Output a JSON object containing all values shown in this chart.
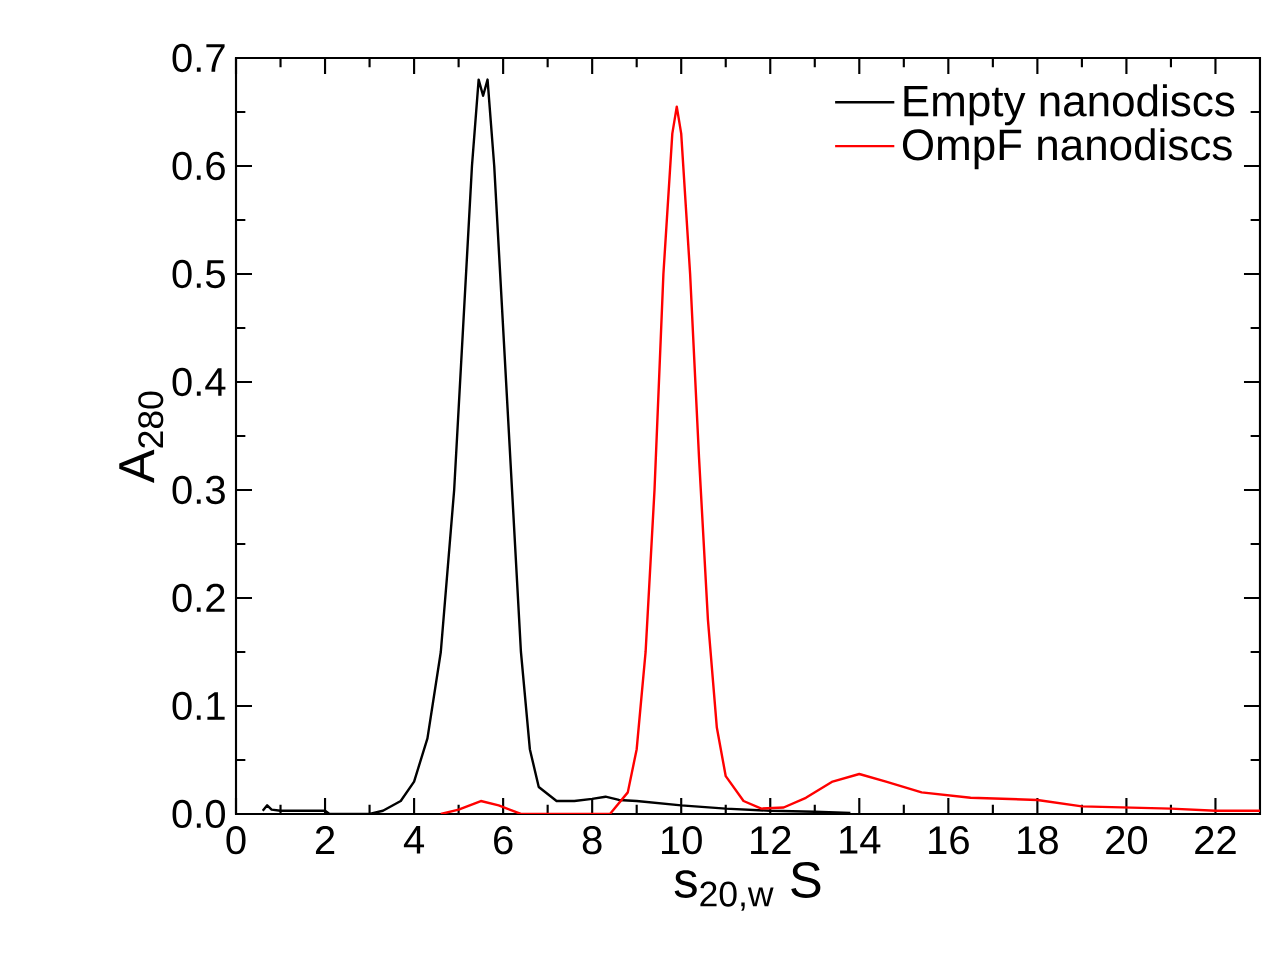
{
  "chart_data": {
    "type": "line",
    "xlabel": "s$_{20,w}$ S",
    "ylabel": "A$_{280}$",
    "xlim": [
      0,
      23
    ],
    "ylim": [
      0,
      0.7
    ],
    "xticks": [
      0,
      {
        "value": 1,
        "label": null
      },
      2,
      {
        "value": 3,
        "label": null
      },
      4,
      {
        "value": 5,
        "label": null
      },
      6,
      {
        "value": 7,
        "label": null
      },
      8,
      {
        "value": 9,
        "label": null
      },
      10,
      {
        "value": 11,
        "label": null
      },
      12,
      {
        "value": 13,
        "label": null
      },
      14,
      {
        "value": 15,
        "label": null
      },
      16,
      {
        "value": 17,
        "label": null
      },
      18,
      {
        "value": 19,
        "label": null
      },
      20,
      {
        "value": 21,
        "label": null
      },
      22
    ],
    "yticks": [
      {
        "value": 0,
        "label": "0.0"
      },
      {
        "value": 0.05,
        "label": null
      },
      {
        "value": 0.1,
        "label": "0.1"
      },
      {
        "value": 0.15,
        "label": null
      },
      {
        "value": 0.2,
        "label": "0.2"
      },
      {
        "value": 0.25,
        "label": null
      },
      {
        "value": 0.3,
        "label": "0.3"
      },
      {
        "value": 0.35,
        "label": null
      },
      {
        "value": 0.4,
        "label": "0.4"
      },
      {
        "value": 0.45,
        "label": null
      },
      {
        "value": 0.5,
        "label": "0.5"
      },
      {
        "value": 0.55,
        "label": null
      },
      {
        "value": 0.6,
        "label": "0.6"
      },
      {
        "value": 0.65,
        "label": null
      },
      {
        "value": 0.7,
        "label": "0.7"
      }
    ],
    "legend": "top right",
    "grid": false,
    "marker": "none",
    "line_style": "solid",
    "series": [
      {
        "name": "Empty nanodiscs",
        "color": "#000000",
        "x": [
          0.6,
          0.7,
          0.8,
          1.0,
          2.0,
          2.1,
          3.0,
          3.3,
          3.7,
          4.0,
          4.3,
          4.6,
          4.9,
          5.1,
          5.3,
          5.45,
          5.55,
          5.65,
          5.8,
          6.0,
          6.2,
          6.4,
          6.6,
          6.8,
          7.2,
          7.6,
          8.0,
          8.3,
          8.6,
          9.0,
          10.0,
          11.0,
          12.0,
          13.0,
          13.8
        ],
        "values": [
          0.003,
          0.008,
          0.004,
          0.003,
          0.003,
          0.0,
          0.0,
          0.003,
          0.012,
          0.03,
          0.07,
          0.15,
          0.3,
          0.45,
          0.6,
          0.68,
          0.665,
          0.68,
          0.6,
          0.45,
          0.3,
          0.15,
          0.06,
          0.025,
          0.012,
          0.012,
          0.014,
          0.016,
          0.013,
          0.012,
          0.008,
          0.005,
          0.003,
          0.002,
          0.001
        ]
      },
      {
        "name": "OmpF nanodiscs",
        "color": "#ff0000",
        "x": [
          4.6,
          5.0,
          5.5,
          5.9,
          6.4,
          8.4,
          8.8,
          9.0,
          9.2,
          9.4,
          9.6,
          9.8,
          9.9,
          10.0,
          10.2,
          10.4,
          10.6,
          10.8,
          11.0,
          11.4,
          11.8,
          12.3,
          12.8,
          13.4,
          14.0,
          14.6,
          15.4,
          16.5,
          18.0,
          19.0,
          21.0,
          22.0,
          23.0
        ],
        "values": [
          0.0,
          0.004,
          0.012,
          0.008,
          0.0,
          0.0,
          0.02,
          0.06,
          0.15,
          0.3,
          0.5,
          0.63,
          0.655,
          0.63,
          0.5,
          0.33,
          0.18,
          0.08,
          0.035,
          0.012,
          0.005,
          0.006,
          0.015,
          0.03,
          0.037,
          0.03,
          0.02,
          0.015,
          0.013,
          0.007,
          0.005,
          0.003,
          0.003
        ]
      }
    ]
  }
}
